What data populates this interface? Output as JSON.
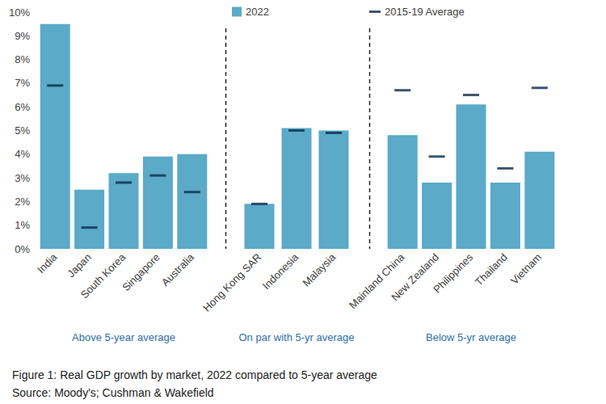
{
  "chart_data": {
    "type": "bar",
    "title": "Figure 1: Real GDP growth by market, 2022 compared to 5-year average",
    "source": "Source: Moody's; Cushman & Wakefield",
    "groups": [
      {
        "label": "Above 5-year average",
        "categories": [
          "India",
          "Japan",
          "South Korea",
          "Singapore",
          "Australia"
        ]
      },
      {
        "label": "On par with 5-yr average",
        "categories": [
          "Hong Kong SAR",
          "Indonesia",
          "Malaysia"
        ]
      },
      {
        "label": "Below 5-yr average",
        "categories": [
          "Mainland China",
          "New Zealand",
          "Philippines",
          "Thailand",
          "Vietnam"
        ]
      }
    ],
    "series": [
      {
        "name": "2022",
        "type": "bar",
        "color": "#5aaac8",
        "values": [
          9.5,
          2.5,
          3.2,
          3.9,
          4.0,
          1.9,
          5.1,
          5.0,
          4.8,
          2.8,
          6.1,
          2.8,
          4.1
        ]
      },
      {
        "name": "2015-19 Average",
        "type": "scatter",
        "marker": "dash",
        "color": "#0d2b4a",
        "values": [
          6.9,
          0.9,
          2.8,
          3.1,
          2.4,
          1.9,
          5.0,
          4.9,
          6.7,
          3.9,
          6.5,
          3.4,
          6.8
        ]
      }
    ],
    "ylim": [
      0,
      10
    ],
    "yticks": [
      {
        "value": 0,
        "label": "0%"
      },
      {
        "value": 1,
        "label": "1%"
      },
      {
        "value": 2,
        "label": "2%"
      },
      {
        "value": 3,
        "label": "3%"
      },
      {
        "value": 4,
        "label": "4%"
      },
      {
        "value": 5,
        "label": "5%"
      },
      {
        "value": 6,
        "label": "6%"
      },
      {
        "value": 7,
        "label": "7%"
      },
      {
        "value": 8,
        "label": "8%"
      },
      {
        "value": 9,
        "label": "9%"
      },
      {
        "value": 10,
        "label": "10%"
      }
    ],
    "grid": false,
    "legend": "top"
  }
}
